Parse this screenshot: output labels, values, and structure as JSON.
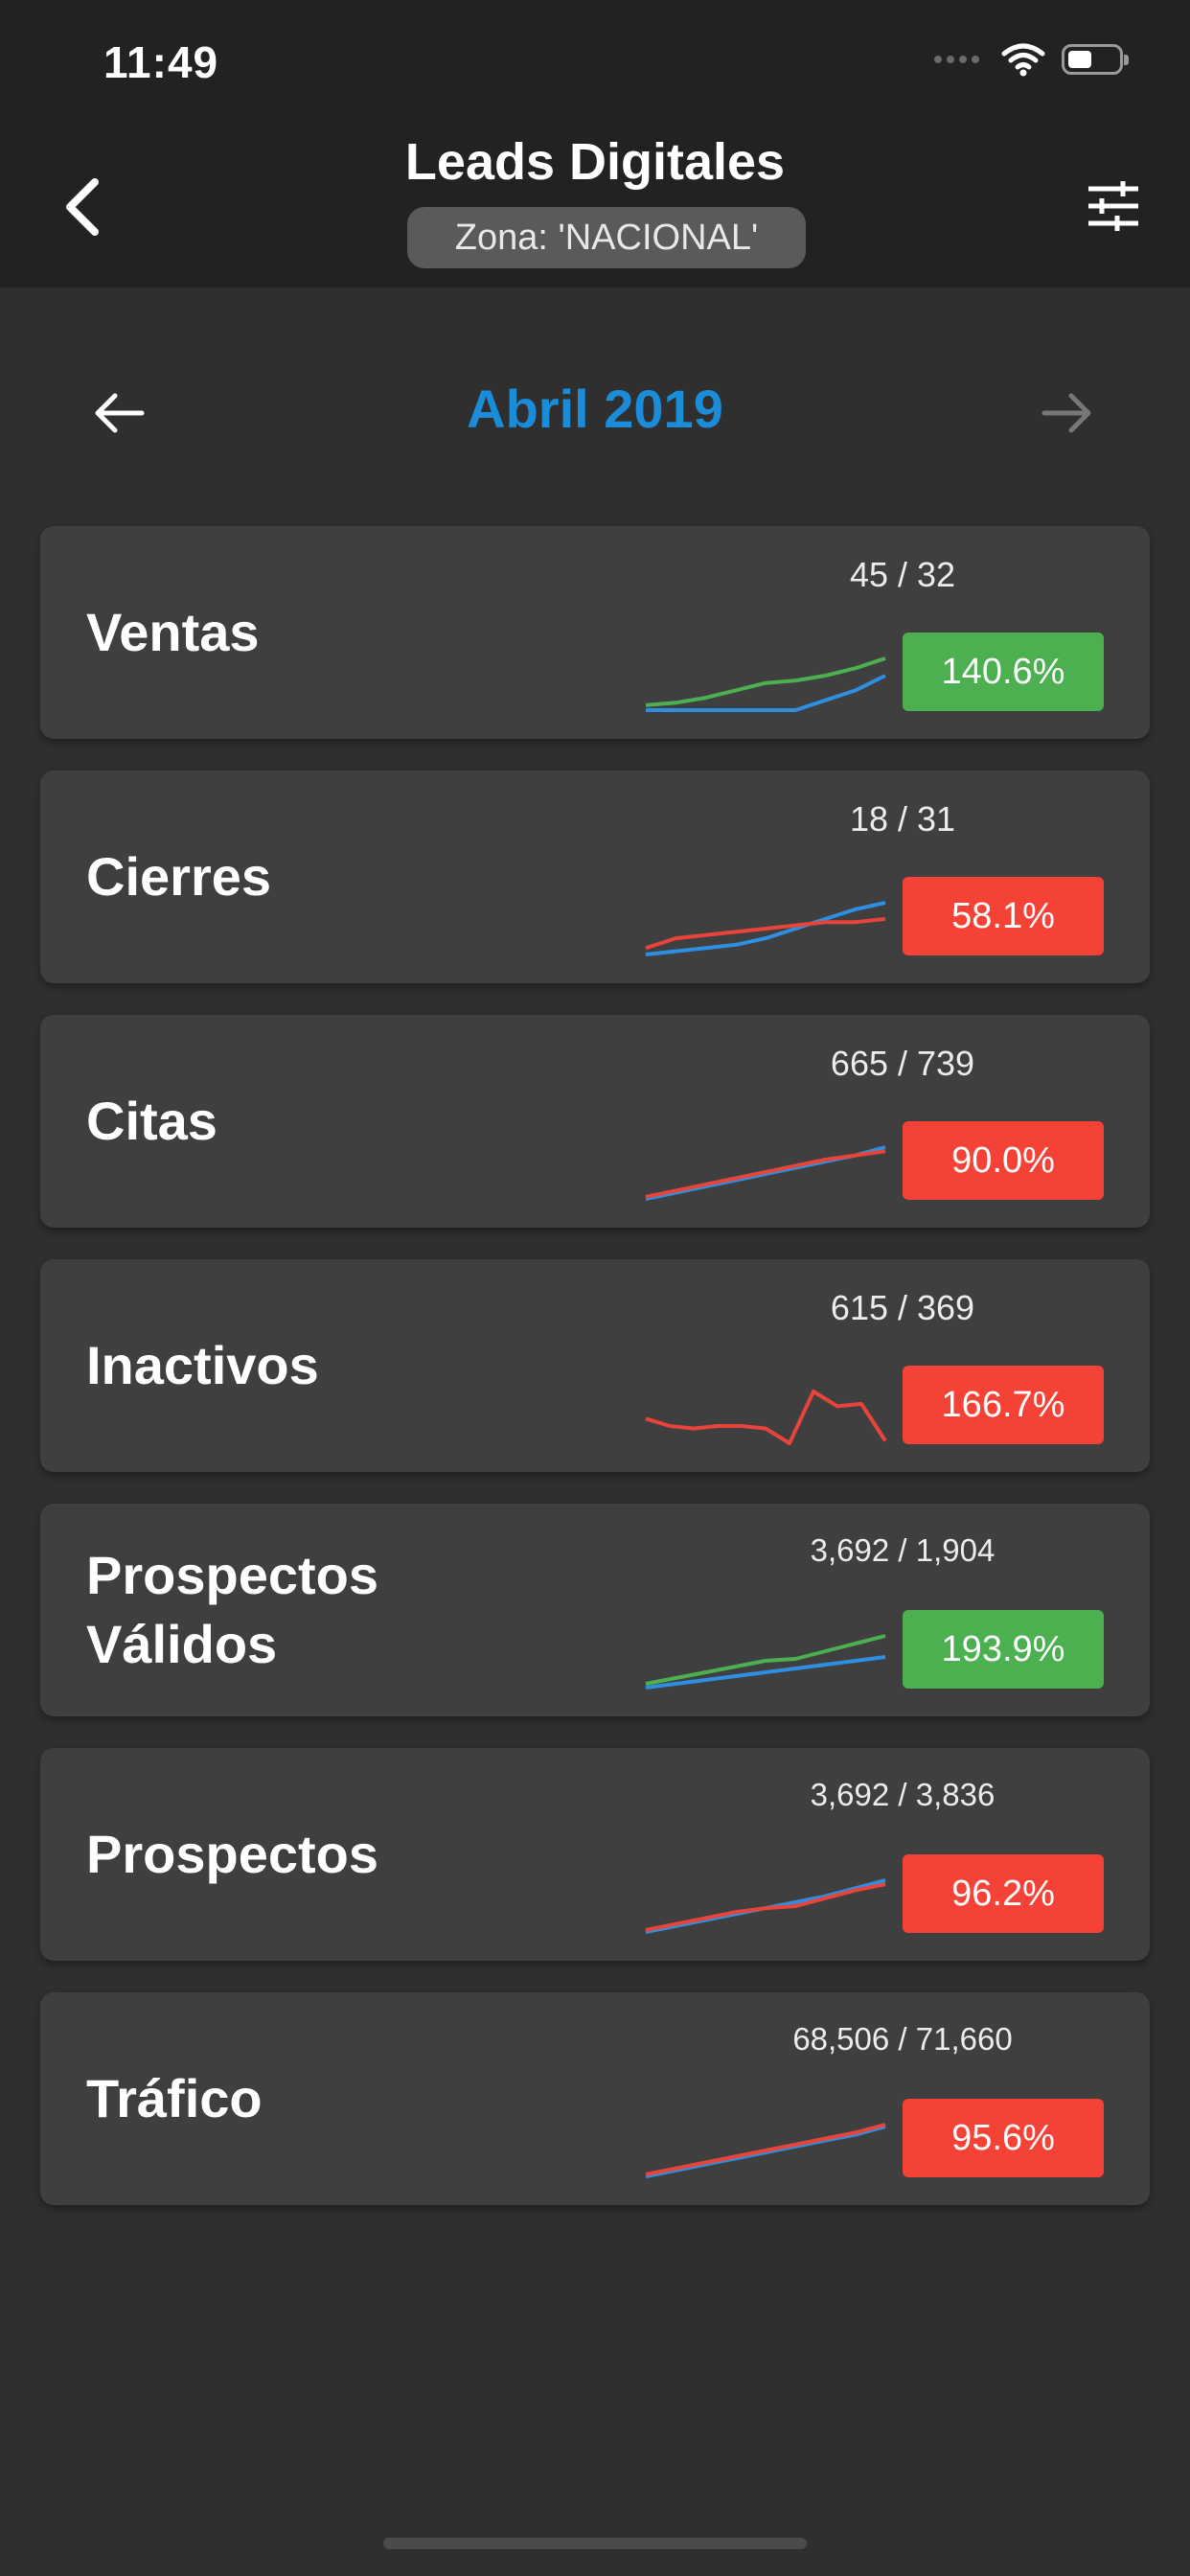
{
  "status_bar": {
    "time": "11:49"
  },
  "header": {
    "title": "Leads Digitales",
    "zone": "Zona: 'NACIONAL'"
  },
  "month_nav": {
    "label": "Abril 2019"
  },
  "colors": {
    "accent_blue": "#1b8cd8",
    "green": "#4caf50",
    "red": "#f44336",
    "line_blue": "#2e8fe0",
    "line_green": "#4caf50",
    "line_red": "#e8443a"
  },
  "cards": [
    {
      "label": "Ventas",
      "ratio": "45 / 32",
      "percent": "140.6%",
      "status": "green",
      "spark": {
        "series_a": {
          "color": "line_green",
          "values": [
            2,
            3,
            5,
            8,
            11,
            12,
            14,
            17,
            21
          ]
        },
        "series_b": {
          "color": "line_blue",
          "values": [
            0,
            0,
            0,
            0,
            0,
            0,
            4,
            8,
            14
          ]
        }
      }
    },
    {
      "label": "Cierres",
      "ratio": "18 / 31",
      "percent": "58.1%",
      "status": "red",
      "spark": {
        "series_a": {
          "color": "line_blue",
          "values": [
            0,
            1,
            2,
            3,
            5,
            8,
            11,
            14,
            16
          ]
        },
        "series_b": {
          "color": "line_red",
          "values": [
            2,
            5,
            6,
            7,
            8,
            9,
            10,
            10,
            11
          ]
        }
      }
    },
    {
      "label": "Citas",
      "ratio": "665 / 739",
      "percent": "90.0%",
      "status": "red",
      "spark": {
        "series_a": {
          "color": "line_blue",
          "values": [
            0,
            3,
            6,
            9,
            12,
            15,
            18,
            21,
            25
          ]
        },
        "series_b": {
          "color": "line_red",
          "values": [
            1,
            4,
            7,
            10,
            13,
            16,
            19,
            21,
            23
          ]
        }
      }
    },
    {
      "label": "Inactivos",
      "ratio": "615 / 369",
      "percent": "166.7%",
      "status": "red",
      "spark": {
        "series_a": {
          "color": "line_red",
          "values": [
            14,
            11,
            10,
            11,
            11,
            10,
            4,
            25,
            19,
            20,
            5
          ]
        }
      }
    },
    {
      "label": "Prospectos Válidos",
      "ratio": "3,692 / 1,904",
      "percent": "193.9%",
      "status": "green",
      "spark": {
        "series_a": {
          "color": "line_green",
          "values": [
            2,
            5,
            8,
            11,
            14,
            15,
            19,
            23,
            27
          ]
        },
        "series_b": {
          "color": "line_blue",
          "values": [
            0,
            2,
            4,
            6,
            8,
            10,
            12,
            14,
            16
          ]
        }
      }
    },
    {
      "label": "Prospectos",
      "ratio": "3,692 / 3,836",
      "percent": "96.2%",
      "status": "red",
      "spark": {
        "series_a": {
          "color": "line_blue",
          "values": [
            0,
            3,
            6,
            9,
            12,
            15,
            18,
            22,
            26
          ]
        },
        "series_b": {
          "color": "line_red",
          "values": [
            1,
            4,
            7,
            10,
            12,
            13,
            17,
            21,
            24
          ]
        }
      }
    },
    {
      "label": "Tráfico",
      "ratio": "68,506 / 71,660",
      "percent": "95.6%",
      "status": "red",
      "spark": {
        "series_a": {
          "color": "line_blue",
          "values": [
            0,
            3,
            6,
            9,
            12,
            15,
            18,
            21,
            25
          ]
        },
        "series_b": {
          "color": "line_red",
          "values": [
            1,
            4,
            7,
            10,
            13,
            16,
            19,
            22,
            26
          ]
        }
      }
    }
  ]
}
